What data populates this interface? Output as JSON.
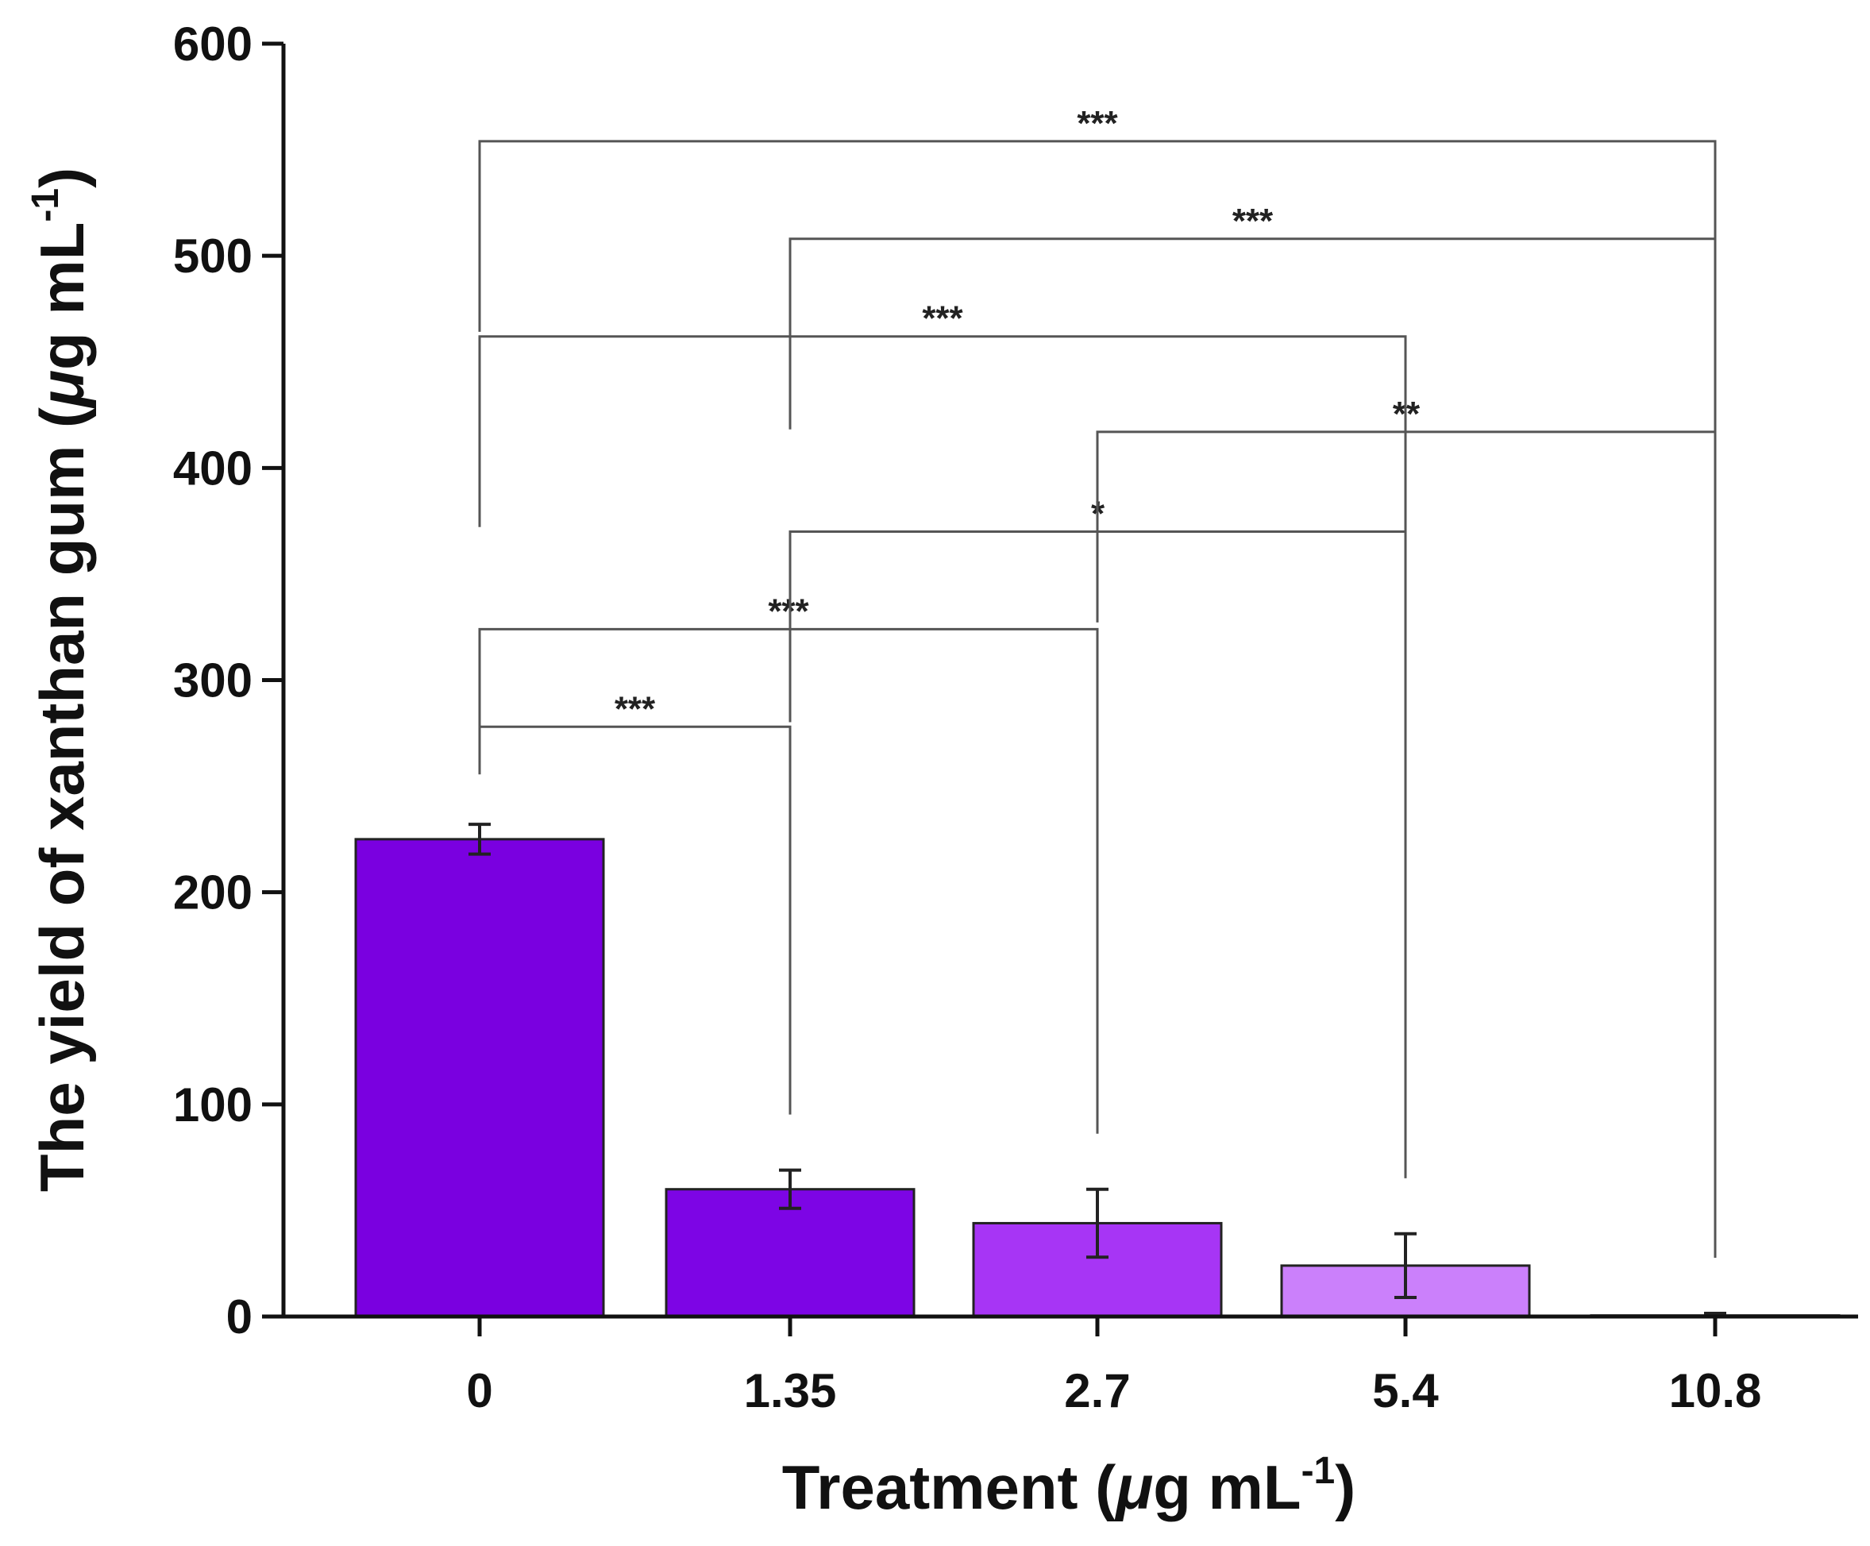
{
  "chart_data": {
    "type": "bar",
    "title": "",
    "xlabel": {
      "pre": "Treatment (",
      "mu": "μ",
      "post": "g mL",
      "sup": "-1",
      "close": ")"
    },
    "ylabel": {
      "pre": "The yield of xanthan gum (",
      "mu": "μ",
      "post": "g mL",
      "sup": "-1",
      "close": ")"
    },
    "ylim": [
      0,
      600
    ],
    "yticks": [
      "0",
      "100",
      "200",
      "300",
      "400",
      "500",
      "600"
    ],
    "categories": [
      "0",
      "1.35",
      "2.7",
      "5.4",
      "10.8"
    ],
    "values": [
      225,
      60,
      44,
      24,
      0.5
    ],
    "errors": [
      7,
      9,
      16,
      15,
      1
    ],
    "colors": [
      "#7a00e0",
      "#7d05e5",
      "#a735f5",
      "#cb80fb",
      "#dcc0ff"
    ],
    "significance": [
      {
        "from": "0",
        "to": "1.35",
        "label": "***",
        "y": 278
      },
      {
        "from": "0",
        "to": "2.7",
        "label": "***",
        "y": 324
      },
      {
        "from": "1.35",
        "to": "5.4",
        "label": "*",
        "y": 370
      },
      {
        "from": "2.7",
        "to": "10.8",
        "label": "**",
        "y": 417
      },
      {
        "from": "0",
        "to": "5.4",
        "label": "***",
        "y": 462
      },
      {
        "from": "1.35",
        "to": "10.8",
        "label": "***",
        "y": 508
      },
      {
        "from": "0",
        "to": "10.8",
        "label": "***",
        "y": 554
      }
    ]
  }
}
